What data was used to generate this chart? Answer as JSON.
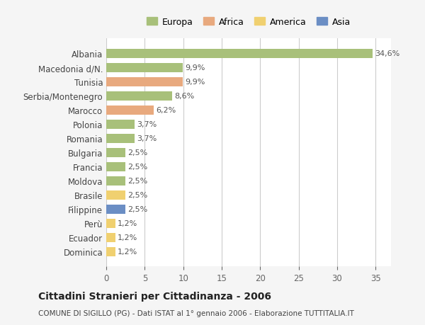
{
  "categories": [
    "Albania",
    "Macedonia d/N.",
    "Tunisia",
    "Serbia/Montenegro",
    "Marocco",
    "Polonia",
    "Romania",
    "Bulgaria",
    "Francia",
    "Moldova",
    "Brasile",
    "Filippine",
    "Perù",
    "Ecuador",
    "Dominica"
  ],
  "values": [
    34.6,
    9.9,
    9.9,
    8.6,
    6.2,
    3.7,
    3.7,
    2.5,
    2.5,
    2.5,
    2.5,
    2.5,
    1.2,
    1.2,
    1.2
  ],
  "colors": [
    "#a8c07a",
    "#a8c07a",
    "#e8a97e",
    "#a8c07a",
    "#e8a97e",
    "#a8c07a",
    "#a8c07a",
    "#a8c07a",
    "#a8c07a",
    "#a8c07a",
    "#f0d070",
    "#6b8ec4",
    "#f0d070",
    "#f0d070",
    "#f0d070"
  ],
  "labels": [
    "34,6%",
    "9,9%",
    "9,9%",
    "8,6%",
    "6,2%",
    "3,7%",
    "3,7%",
    "2,5%",
    "2,5%",
    "2,5%",
    "2,5%",
    "2,5%",
    "1,2%",
    "1,2%",
    "1,2%"
  ],
  "legend_labels": [
    "Europa",
    "Africa",
    "America",
    "Asia"
  ],
  "legend_colors": [
    "#a8c07a",
    "#e8a97e",
    "#f0d070",
    "#6b8ec4"
  ],
  "title": "Cittadini Stranieri per Cittadinanza - 2006",
  "subtitle": "COMUNE DI SIGILLO (PG) - Dati ISTAT al 1° gennaio 2006 - Elaborazione TUTTITALIA.IT",
  "xlim": [
    0,
    37
  ],
  "xticks": [
    0,
    5,
    10,
    15,
    20,
    25,
    30,
    35
  ],
  "bg_color": "#f5f5f5",
  "plot_bg_color": "#ffffff",
  "grid_color": "#cccccc",
  "bar_height": 0.65
}
